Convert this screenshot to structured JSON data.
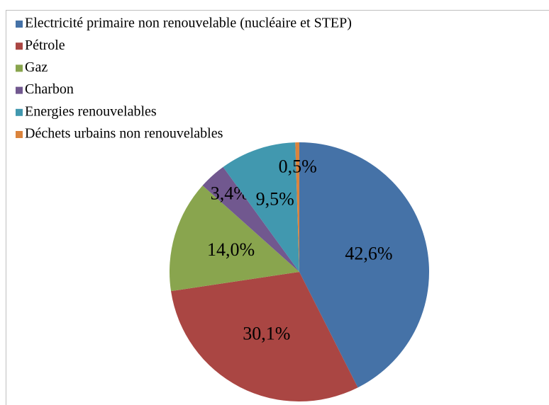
{
  "chart_data": {
    "type": "pie",
    "categories": [
      "Electricité primaire non renouvelable (nucléaire et STEP)",
      "Pétrole",
      "Gaz",
      "Charbon",
      "Energies renouvelables",
      "Déchets urbains non renouvelables"
    ],
    "values": [
      42.6,
      30.1,
      14.0,
      3.4,
      9.5,
      0.5
    ],
    "value_labels": [
      "42,6%",
      "30,1%",
      "14,0%",
      "3,4%",
      "9,5%",
      "0,5%"
    ],
    "colors": [
      "#4572a7",
      "#aa4643",
      "#89a54e",
      "#71588f",
      "#4198af",
      "#db843d"
    ],
    "legend": "top-left"
  }
}
